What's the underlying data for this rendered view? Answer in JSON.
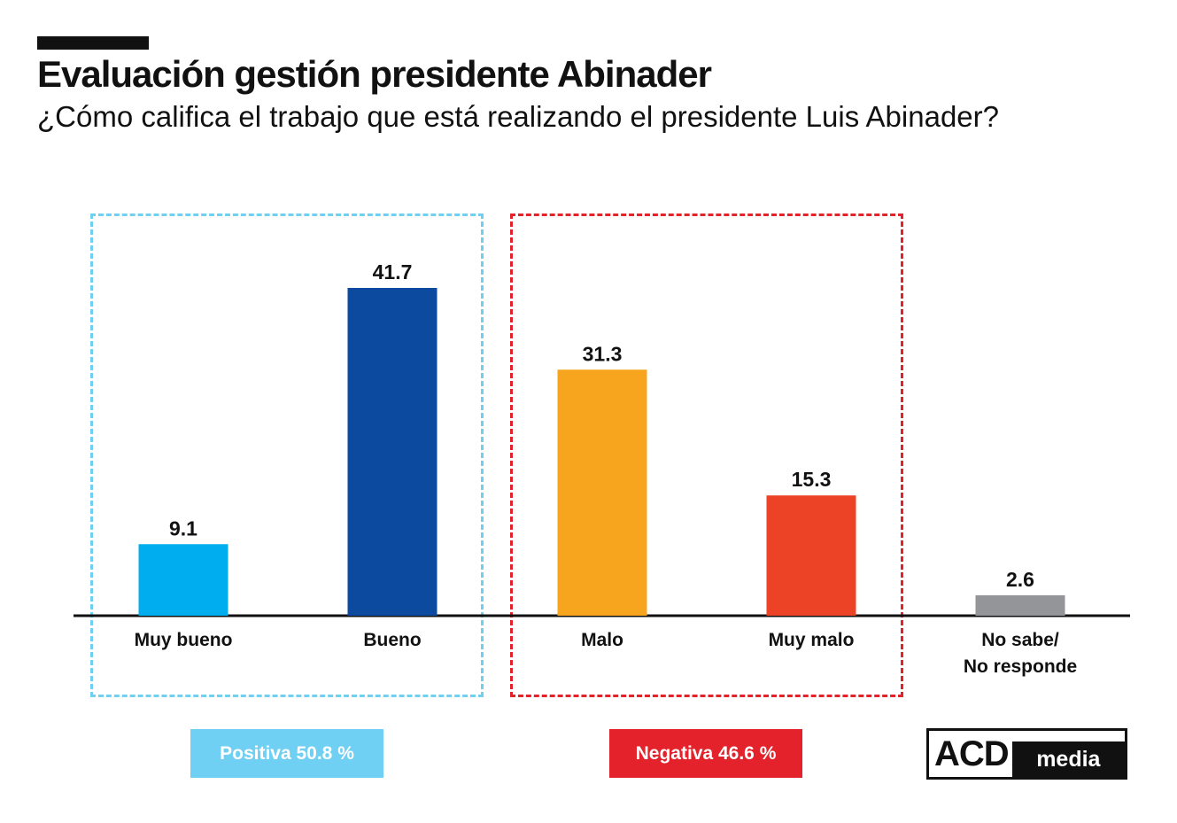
{
  "header": {
    "title": "Evaluación gestión presidente Abinader",
    "subtitle": "¿Cómo califica el trabajo que está realizando el presidente Luis Abinader?"
  },
  "groups": {
    "positive_label": "Positiva 50.8 %",
    "negative_label": "Negativa 46.6 %"
  },
  "logo": {
    "acd": "ACD",
    "media": "media"
  },
  "colors": {
    "positive_box": "#6fd0f0",
    "negative_box": "#e3222b",
    "axis": "#111111"
  },
  "chart_data": {
    "type": "bar",
    "categories": [
      "Muy bueno",
      "Bueno",
      "Malo",
      "Muy malo",
      "No sabe/\nNo responde"
    ],
    "values": [
      9.1,
      41.7,
      31.3,
      15.3,
      2.6
    ],
    "colors": [
      "#00aeef",
      "#0b4a9e",
      "#f7a51e",
      "#ec4226",
      "#939598"
    ],
    "ylim": [
      0,
      45
    ],
    "grid": false,
    "legend": "none"
  }
}
